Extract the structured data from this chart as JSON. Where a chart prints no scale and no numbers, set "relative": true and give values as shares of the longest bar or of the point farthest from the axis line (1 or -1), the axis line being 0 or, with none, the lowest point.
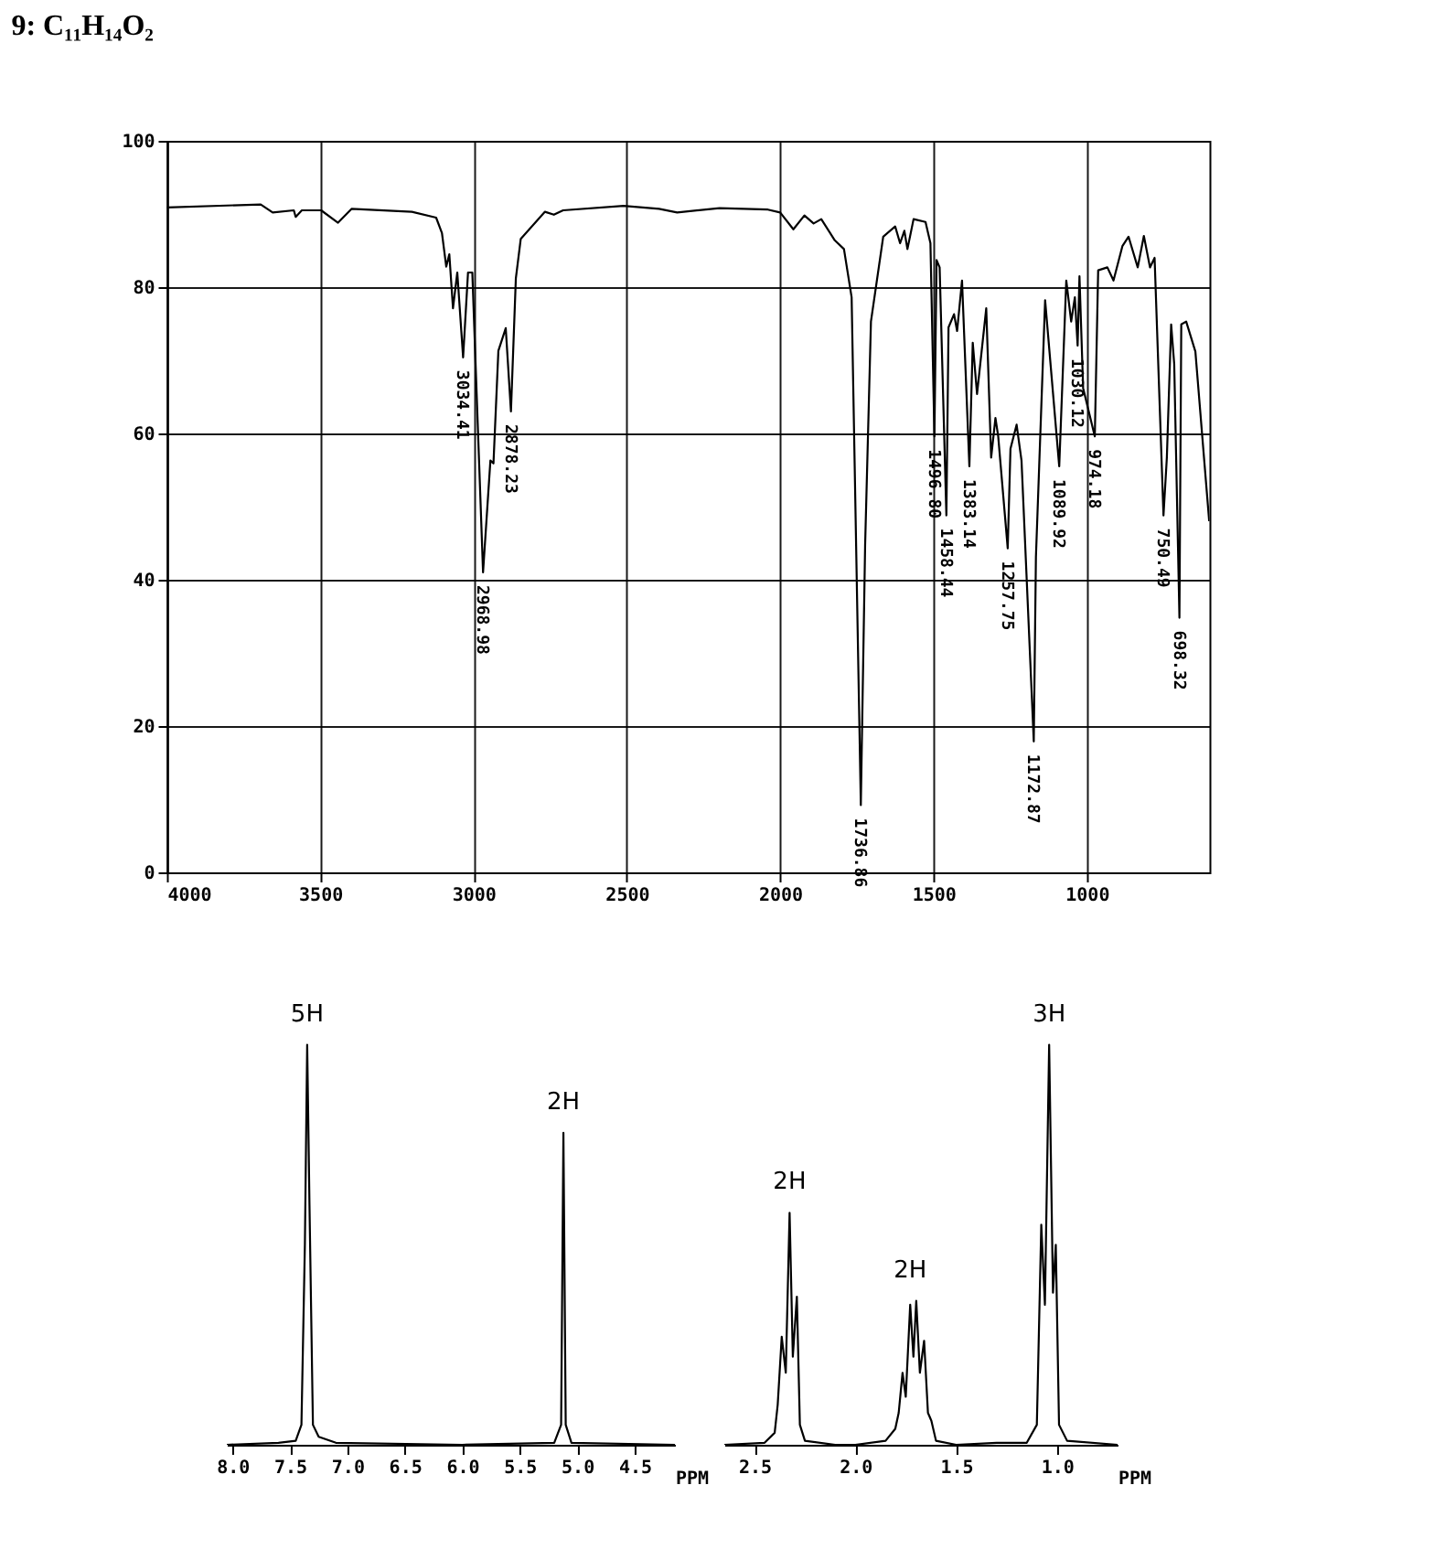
{
  "chart_data": [
    {
      "type": "line",
      "title": "9: C₁₁H₁₄O₂",
      "xlim": [
        4000,
        600
      ],
      "xticks": [
        4000,
        3500,
        3000,
        2500,
        2000,
        1500,
        1000
      ],
      "ylim": [
        0,
        100
      ],
      "yticks": [
        0,
        20,
        40,
        60,
        80,
        100
      ],
      "grid": true,
      "series": [
        {
          "color": "#000000",
          "x": [
            4000,
            3694,
            3655,
            3586,
            3580,
            3560,
            3497,
            3442,
            3398,
            3201,
            3122,
            3103,
            3089,
            3079,
            3067,
            3053,
            3034,
            3018,
            3004,
            2969,
            2945,
            2935,
            2919,
            2895,
            2878,
            2862,
            2846,
            2767,
            2738,
            2708,
            2511,
            2395,
            2336,
            2198,
            2040,
            2000,
            1957,
            1921,
            1891,
            1866,
            1822,
            1792,
            1767,
            1737,
            1723,
            1704,
            1664,
            1625,
            1609,
            1595,
            1585,
            1565,
            1526,
            1510,
            1497,
            1490,
            1480,
            1458,
            1451,
            1433,
            1423,
            1407,
            1383,
            1372,
            1358,
            1328,
            1312,
            1298,
            1289,
            1258,
            1249,
            1229,
            1213,
            1173,
            1166,
            1136,
            1090,
            1067,
            1051,
            1039,
            1030,
            1024,
            1012,
            974,
            963,
            933,
            913,
            884,
            864,
            834,
            814,
            794,
            779,
            750,
            739,
            725,
            715,
            698,
            692,
            676,
            646,
            601
          ],
          "values": [
            90.9,
            91.3,
            90.2,
            90.5,
            89.6,
            90.5,
            90.5,
            88.8,
            90.7,
            90.3,
            89.5,
            87.4,
            82.8,
            84.5,
            77.1,
            82.0,
            70.4,
            82.0,
            82.0,
            41.0,
            56.3,
            55.9,
            71.3,
            74.4,
            63.0,
            81.2,
            86.6,
            90.3,
            89.9,
            90.5,
            91.1,
            90.7,
            90.2,
            90.8,
            90.6,
            90.2,
            87.9,
            89.8,
            88.7,
            89.3,
            86.4,
            85.2,
            78.6,
            9.2,
            44.7,
            75.3,
            86.9,
            88.3,
            86.0,
            87.7,
            85.2,
            89.3,
            88.9,
            86.0,
            59.6,
            83.7,
            82.7,
            48.8,
            74.5,
            76.3,
            74.0,
            80.9,
            55.5,
            72.4,
            65.4,
            77.1,
            56.7,
            62.1,
            59.6,
            44.3,
            57.9,
            61.2,
            56.3,
            17.9,
            43.1,
            78.2,
            55.5,
            80.9,
            75.3,
            78.6,
            72.0,
            81.5,
            66.2,
            59.6,
            82.3,
            82.7,
            80.9,
            85.6,
            86.9,
            82.7,
            87.0,
            82.7,
            84.0,
            48.8,
            56.7,
            74.9,
            69.5,
            34.8,
            74.9,
            75.3,
            71.2,
            48.0
          ]
        }
      ],
      "annotations": [
        {
          "text": "3034.41",
          "x": 3034,
          "y": 70.4
        },
        {
          "text": "2968.98",
          "x": 2969,
          "y": 41.0
        },
        {
          "text": "2878.23",
          "x": 2878,
          "y": 63.0
        },
        {
          "text": "1736.86",
          "x": 1737,
          "y": 9.2
        },
        {
          "text": "1496.80",
          "x": 1497,
          "y": 59.6
        },
        {
          "text": "1458.44",
          "x": 1458,
          "y": 48.8
        },
        {
          "text": "1383.14",
          "x": 1383,
          "y": 55.5
        },
        {
          "text": "1257.75",
          "x": 1258,
          "y": 44.3
        },
        {
          "text": "1172.87",
          "x": 1173,
          "y": 17.9
        },
        {
          "text": "1089.92",
          "x": 1090,
          "y": 55.5
        },
        {
          "text": "1030.12",
          "x": 1030,
          "y": 72.0
        },
        {
          "text": "974.18",
          "x": 974,
          "y": 59.6
        },
        {
          "text": "750.49",
          "x": 750,
          "y": 48.8
        },
        {
          "text": "698.32",
          "x": 698,
          "y": 34.8
        }
      ]
    },
    {
      "type": "line",
      "relative": true,
      "xlabel": "PPM",
      "xlim": [
        8.05,
        4.15
      ],
      "tick_labels": "x",
      "xticks": [
        {
          "value": 8,
          "label": "8.0"
        },
        7.5,
        {
          "value": 7,
          "label": "7.0"
        },
        6.5,
        {
          "value": 6,
          "label": "6.0"
        },
        5.5,
        {
          "value": 5,
          "label": "5.0"
        },
        4.5
      ],
      "series": [
        {
          "color": "#000000",
          "x": [
            8.05,
            7.6,
            7.45,
            7.4,
            7.37,
            7.35,
            7.33,
            7.3,
            7.25,
            7.1,
            6.0,
            5.2,
            5.14,
            5.12,
            5.1,
            5.05,
            4.15
          ],
          "values": [
            0,
            0.005,
            0.01,
            0.05,
            0.5,
            1.0,
            0.6,
            0.05,
            0.02,
            0.005,
            0,
            0.005,
            0.05,
            0.78,
            0.05,
            0.005,
            0
          ]
        }
      ],
      "annotations": [
        {
          "text": "5H",
          "x": 7.35,
          "y": 1.0
        },
        {
          "text": "2H",
          "x": 5.12,
          "y": 0.78
        }
      ]
    },
    {
      "type": "line",
      "relative": true,
      "xlabel": "PPM",
      "xlim": [
        2.65,
        0.7
      ],
      "tick_labels": "x",
      "xticks": [
        2.5,
        {
          "value": 2,
          "label": "2.0"
        },
        1.5,
        {
          "value": 1,
          "label": "1.0"
        }
      ],
      "series": [
        {
          "color": "#000000",
          "x": [
            2.65,
            2.45,
            2.4,
            2.385,
            2.365,
            2.345,
            2.326,
            2.31,
            2.29,
            2.275,
            2.25,
            2.1,
            2.0,
            1.85,
            1.802,
            1.785,
            1.766,
            1.75,
            1.728,
            1.712,
            1.698,
            1.68,
            1.659,
            1.64,
            1.623,
            1.6,
            1.5,
            1.3,
            1.15,
            1.1,
            1.078,
            1.06,
            1.039,
            1.02,
            1.006,
            0.99,
            0.95,
            0.7
          ],
          "values": [
            0,
            0.005,
            0.03,
            0.1,
            0.27,
            0.18,
            0.58,
            0.22,
            0.37,
            0.05,
            0.01,
            0,
            0,
            0.01,
            0.04,
            0.08,
            0.18,
            0.12,
            0.35,
            0.22,
            0.36,
            0.18,
            0.26,
            0.08,
            0.06,
            0.01,
            0,
            0.005,
            0.005,
            0.05,
            0.55,
            0.35,
            1.0,
            0.38,
            0.5,
            0.05,
            0.01,
            0
          ]
        }
      ],
      "annotations": [
        {
          "text": "2H",
          "x": 2.326,
          "y": 0.58
        },
        {
          "text": "2H",
          "x": 1.728,
          "y": 0.36
        },
        {
          "text": "3H",
          "x": 1.039,
          "y": 1.0
        }
      ]
    }
  ]
}
